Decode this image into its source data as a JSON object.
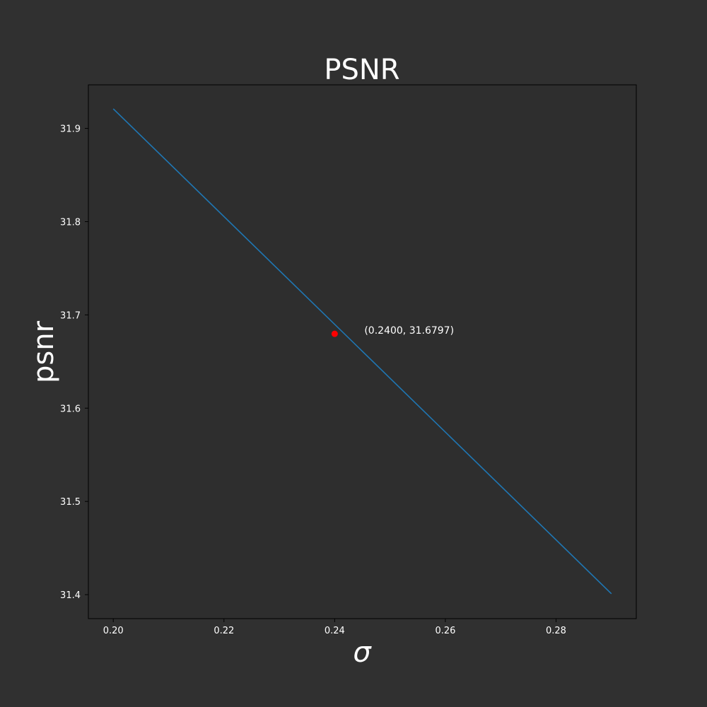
{
  "chart_data": {
    "type": "line",
    "title": "PSNR",
    "xlabel": "σ",
    "ylabel": "psnr",
    "xlim": [
      0.1955,
      0.2945
    ],
    "ylim": [
      31.3743,
      31.9467
    ],
    "x_ticks": [
      0.2,
      0.22,
      0.24,
      0.26,
      0.28
    ],
    "x_tick_labels": [
      "0.20",
      "0.22",
      "0.24",
      "0.26",
      "0.28"
    ],
    "y_ticks": [
      31.4,
      31.5,
      31.6,
      31.7,
      31.8,
      31.9
    ],
    "y_tick_labels": [
      "31.4",
      "31.5",
      "31.6",
      "31.7",
      "31.8",
      "31.9"
    ],
    "grid": false,
    "series": [
      {
        "color": "#1f77b4",
        "x": [
          0.2,
          0.29
        ],
        "y": [
          31.921,
          31.401
        ]
      }
    ],
    "highlight_point": {
      "x": 0.24,
      "y": 31.6797,
      "color": "#ff0000",
      "label": "(0.2400, 31.6797)"
    },
    "colors": {
      "background": "#303030",
      "axes_background": "#2e2e2e",
      "text": "#ffffff",
      "spine": "#000000"
    }
  }
}
